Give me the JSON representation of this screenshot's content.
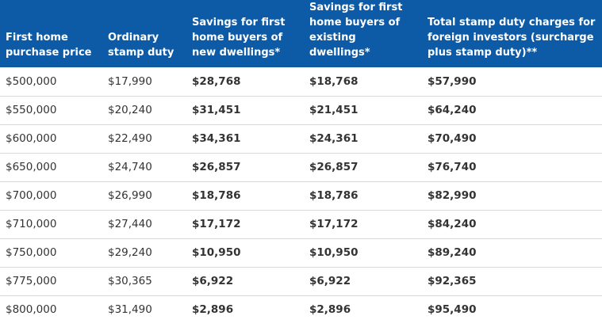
{
  "table": {
    "headers": [
      "First home purchase price",
      "Ordinary stamp duty",
      "Savings for first home buyers of new dwellings*",
      "Savings for first home buyers of existing dwellings*",
      "Total stamp duty charges for foreign investors (surcharge plus stamp duty)**"
    ],
    "rows": [
      [
        "$500,000",
        "$17,990",
        "$28,768",
        "$18,768",
        "$57,990"
      ],
      [
        "$550,000",
        "$20,240",
        "$31,451",
        "$21,451",
        "$64,240"
      ],
      [
        "$600,000",
        "$22,490",
        "$34,361",
        "$24,361",
        "$70,490"
      ],
      [
        "$650,000",
        "$24,740",
        "$26,857",
        "$26,857",
        "$76,740"
      ],
      [
        "$700,000",
        "$26,990",
        "$18,786",
        "$18,786",
        "$82,990"
      ],
      [
        "$710,000",
        "$27,440",
        "$17,172",
        "$17,172",
        "$84,240"
      ],
      [
        "$750,000",
        "$29,240",
        "$10,950",
        "$10,950",
        "$89,240"
      ],
      [
        "$775,000",
        "$30,365",
        "$6,922",
        "$6,922",
        "$92,365"
      ],
      [
        "$800,000",
        "$31,490",
        "$2,896",
        "$2,896",
        "$95,490"
      ]
    ]
  },
  "colors": {
    "header_bg": "#0d5aa6",
    "header_text": "#ffffff",
    "body_text": "#333333",
    "row_divider": "#d9d9d9"
  }
}
